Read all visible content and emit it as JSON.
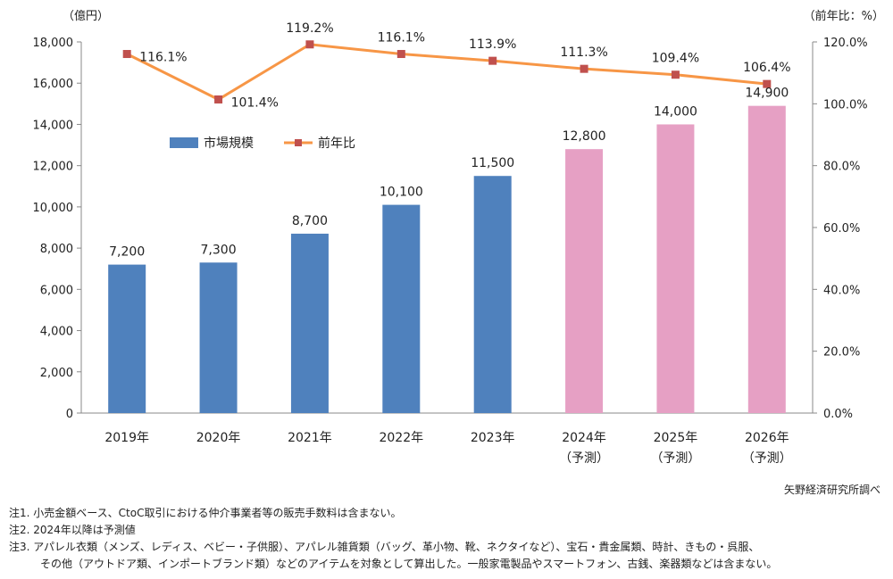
{
  "chart_data": {
    "type": "bar",
    "categories": [
      "2019年",
      "2020年",
      "2021年",
      "2022年",
      "2023年",
      "2024年",
      "2025年",
      "2026年"
    ],
    "category_sublabels": [
      "",
      "",
      "",
      "",
      "",
      "（予測）",
      "（予測）",
      "（予測）"
    ],
    "series": [
      {
        "name": "市場規模",
        "type": "bar",
        "axis": "left",
        "values": [
          7200,
          7300,
          8700,
          10100,
          11500,
          12800,
          14000,
          14900
        ],
        "labels": [
          "7,200",
          "7,300",
          "8,700",
          "10,100",
          "11,500",
          "12,800",
          "14,000",
          "14,900"
        ],
        "color": "#4f81bd",
        "forecast_color": "#e6a0c4",
        "forecast_from_index": 5
      },
      {
        "name": "前年比",
        "type": "line",
        "axis": "right",
        "values": [
          116.1,
          101.4,
          119.2,
          116.1,
          113.9,
          111.3,
          109.4,
          106.4
        ],
        "labels": [
          "116.1%",
          "101.4%",
          "119.2%",
          "116.1%",
          "113.9%",
          "111.3%",
          "109.4%",
          "106.4%"
        ],
        "color": "#f79646"
      }
    ],
    "y_left": {
      "unit_label": "（億円）",
      "ylim": [
        0,
        18000
      ],
      "ticks": [
        0,
        2000,
        4000,
        6000,
        8000,
        10000,
        12000,
        14000,
        16000,
        18000
      ],
      "tick_labels": [
        "0",
        "2,000",
        "4,000",
        "6,000",
        "8,000",
        "10,000",
        "12,000",
        "14,000",
        "16,000",
        "18,000"
      ]
    },
    "y_right": {
      "unit_label": "（前年比：%）",
      "ylim": [
        0,
        120
      ],
      "ticks": [
        0,
        20,
        40,
        60,
        80,
        100,
        120
      ],
      "tick_labels": [
        "0.0%",
        "20.0%",
        "40.0%",
        "60.0%",
        "80.0%",
        "100.0%",
        "120.0%"
      ]
    },
    "legend": {
      "placement": "top-left inside plot"
    },
    "grid": false
  },
  "source": "矢野経済研究所調べ",
  "notes": [
    "注1.  小売金額ベース、CtoC取引における仲介事業者等の販売手数料は含まない。",
    "注2.  2024年以降は予測値",
    "注3.  アパレル衣類（メンズ、レディス、ベビー・子供服）、アパレル雑貨類（バッグ、革小物、靴、ネクタイなど）、宝石・貴金属類、時計、きもの・呉服、",
    "その他（アウトドア類、インポートブランド類）などのアイテムを対象として算出した。一般家電製品やスマートフォン、古銭、楽器類などは含まない。"
  ]
}
